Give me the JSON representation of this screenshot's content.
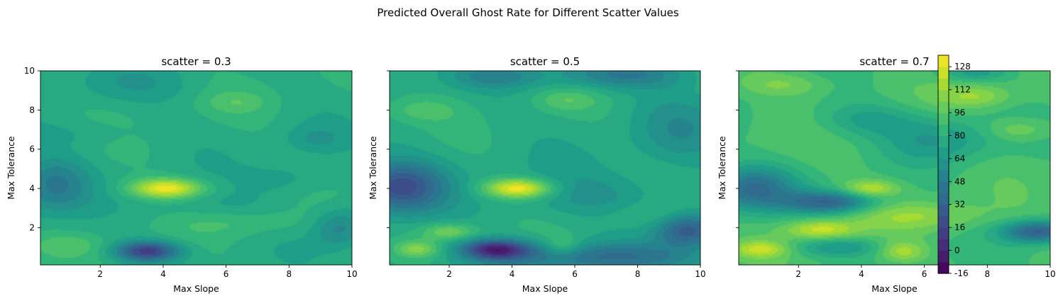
{
  "figure": {
    "suptitle": "Predicted Overall Ghost Rate for Different Scatter Values"
  },
  "colorbar": {
    "ticks": [
      -16,
      0,
      16,
      32,
      48,
      64,
      80,
      96,
      112,
      128
    ],
    "range": [
      -16,
      136
    ],
    "colormap": "viridis"
  },
  "chart_data": [
    {
      "type": "heatmap",
      "subtype": "filled-contour",
      "title": "scatter = 0.3",
      "xlabel": "Max Slope",
      "ylabel": "Max Tolerance",
      "xlim": [
        0.1,
        10
      ],
      "ylim": [
        0.1,
        10
      ],
      "xticks": [
        2,
        4,
        6,
        8,
        10
      ],
      "yticks": [
        2,
        4,
        6,
        8,
        10
      ],
      "base": 78,
      "features": [
        {
          "x": 4.1,
          "y": 4.0,
          "sx": 0.8,
          "sy": 0.35,
          "a": 55
        },
        {
          "x": 3.5,
          "y": 0.8,
          "sx": 0.7,
          "sy": 0.35,
          "a": -65
        },
        {
          "x": 0.5,
          "y": 4.2,
          "sx": 0.8,
          "sy": 1.0,
          "a": -30
        },
        {
          "x": 9.6,
          "y": 2.0,
          "sx": 0.6,
          "sy": 0.7,
          "a": -25
        },
        {
          "x": 6.5,
          "y": 2.3,
          "sx": 1.5,
          "sy": 0.5,
          "a": 12
        },
        {
          "x": 1.0,
          "y": 1.1,
          "sx": 0.8,
          "sy": 0.4,
          "a": 12
        },
        {
          "x": 6.3,
          "y": 8.4,
          "sx": 0.7,
          "sy": 0.4,
          "a": 12
        },
        {
          "x": 8.8,
          "y": 6.5,
          "sx": 0.7,
          "sy": 0.5,
          "a": -12
        },
        {
          "x": 3.0,
          "y": 9.3,
          "sx": 1.5,
          "sy": 0.7,
          "a": -10
        },
        {
          "x": 1.5,
          "y": 6.8,
          "sx": 1.2,
          "sy": 0.5,
          "a": -8
        },
        {
          "x": 5.5,
          "y": 3.0,
          "sx": 1.5,
          "sy": 0.6,
          "a": -10
        },
        {
          "x": 8.0,
          "y": 4.5,
          "sx": 1.0,
          "sy": 0.6,
          "a": -12
        }
      ]
    },
    {
      "type": "heatmap",
      "subtype": "filled-contour",
      "title": "scatter = 0.5",
      "xlabel": "Max Slope",
      "ylabel": "Max Tolerance",
      "xlim": [
        0.1,
        10
      ],
      "ylim": [
        0.1,
        10
      ],
      "xticks": [
        2,
        4,
        6,
        8,
        10
      ],
      "yticks": [],
      "base": 76,
      "features": [
        {
          "x": 4.2,
          "y": 4.0,
          "sx": 0.75,
          "sy": 0.35,
          "a": 60
        },
        {
          "x": 3.5,
          "y": 0.9,
          "sx": 0.75,
          "sy": 0.35,
          "a": -70
        },
        {
          "x": 0.4,
          "y": 4.1,
          "sx": 1.0,
          "sy": 0.9,
          "a": -55
        },
        {
          "x": 9.6,
          "y": 1.9,
          "sx": 0.7,
          "sy": 0.6,
          "a": -50
        },
        {
          "x": 6.5,
          "y": 0.5,
          "sx": 2.5,
          "sy": 0.5,
          "a": -35
        },
        {
          "x": 2.0,
          "y": 1.8,
          "sx": 0.6,
          "sy": 0.3,
          "a": 28
        },
        {
          "x": 1.0,
          "y": 0.9,
          "sx": 0.5,
          "sy": 0.3,
          "a": 28
        },
        {
          "x": 5.6,
          "y": 1.0,
          "sx": 0.4,
          "sy": 0.4,
          "a": 20
        },
        {
          "x": 6.6,
          "y": 3.6,
          "sx": 1.8,
          "sy": 0.8,
          "a": -15
        },
        {
          "x": 7.5,
          "y": 9.8,
          "sx": 1.5,
          "sy": 0.5,
          "a": -30
        },
        {
          "x": 3.5,
          "y": 9.7,
          "sx": 1.0,
          "sy": 0.4,
          "a": -20
        },
        {
          "x": 9.3,
          "y": 7.0,
          "sx": 1.0,
          "sy": 1.2,
          "a": -15
        },
        {
          "x": 1.0,
          "y": 8.0,
          "sx": 1.0,
          "sy": 0.5,
          "a": 15
        },
        {
          "x": 5.7,
          "y": 8.5,
          "sx": 0.7,
          "sy": 0.4,
          "a": 15
        },
        {
          "x": 8.5,
          "y": 2.6,
          "sx": 1.2,
          "sy": 0.5,
          "a": 10
        }
      ]
    },
    {
      "type": "heatmap",
      "subtype": "filled-contour",
      "title": "scatter = 0.7",
      "xlabel": "Max Slope",
      "ylabel": "Max Tolerance",
      "xlim": [
        0.1,
        10
      ],
      "ylim": [
        0.1,
        10
      ],
      "xticks": [
        2,
        4,
        6,
        8,
        10
      ],
      "yticks": [],
      "base": 90,
      "features": [
        {
          "x": 2.7,
          "y": 1.9,
          "sx": 0.8,
          "sy": 0.35,
          "a": 35
        },
        {
          "x": 4.3,
          "y": 4.0,
          "sx": 0.6,
          "sy": 0.3,
          "a": 30
        },
        {
          "x": 0.8,
          "y": 0.9,
          "sx": 0.6,
          "sy": 0.3,
          "a": 30
        },
        {
          "x": 5.3,
          "y": 0.8,
          "sx": 0.5,
          "sy": 0.35,
          "a": 25
        },
        {
          "x": 5.8,
          "y": 2.6,
          "sx": 1.4,
          "sy": 0.5,
          "a": 20
        },
        {
          "x": 3.0,
          "y": 3.3,
          "sx": 1.0,
          "sy": 0.4,
          "a": -55
        },
        {
          "x": 0.5,
          "y": 4.0,
          "sx": 1.0,
          "sy": 0.8,
          "a": -50
        },
        {
          "x": 9.6,
          "y": 1.8,
          "sx": 0.8,
          "sy": 0.4,
          "a": -60
        },
        {
          "x": 3.3,
          "y": 1.0,
          "sx": 1.0,
          "sy": 0.35,
          "a": -25
        },
        {
          "x": 6.5,
          "y": 6.5,
          "sx": 1.2,
          "sy": 0.8,
          "a": -25
        },
        {
          "x": 4.2,
          "y": 7.5,
          "sx": 1.2,
          "sy": 0.6,
          "a": -20
        },
        {
          "x": 7.6,
          "y": 8.7,
          "sx": 0.8,
          "sy": 0.4,
          "a": 22
        },
        {
          "x": 9.0,
          "y": 7.0,
          "sx": 0.7,
          "sy": 0.4,
          "a": 18
        },
        {
          "x": 1.5,
          "y": 9.3,
          "sx": 1.0,
          "sy": 0.4,
          "a": 15
        },
        {
          "x": 7.6,
          "y": 9.9,
          "sx": 0.8,
          "sy": 0.3,
          "a": -20
        }
      ]
    }
  ]
}
